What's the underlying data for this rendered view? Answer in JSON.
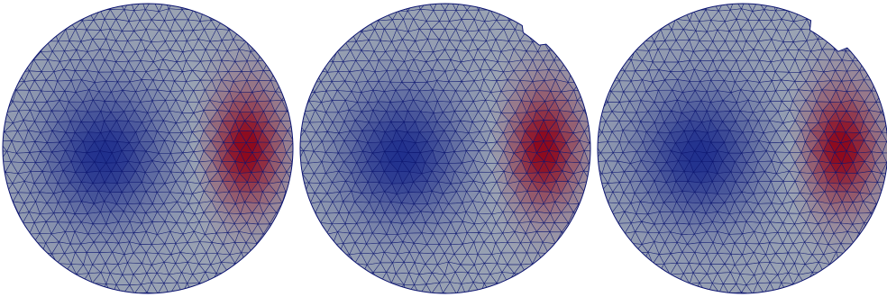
{
  "figure": {
    "panels": [
      {
        "variant": "full-disk",
        "notch": null
      },
      {
        "variant": "small-notch",
        "notch": "small"
      },
      {
        "variant": "large-notch",
        "notch": "large"
      }
    ],
    "colors": {
      "background": "#ffffff",
      "mesh_edge": "#0a1470",
      "field_low": "#1a2a8c",
      "field_mid": "#9aa3b3",
      "field_high": "#8e0a1e",
      "outline": "#0c1470"
    }
  }
}
